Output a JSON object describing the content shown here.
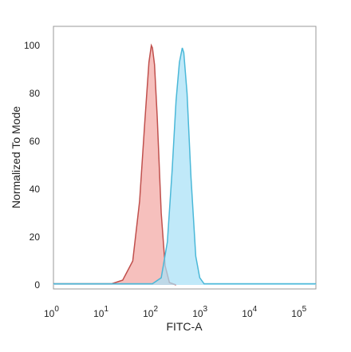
{
  "chart_data": {
    "type": "area",
    "xlabel": "FITC-A",
    "ylabel": "Normalized To Mode",
    "x_scale": "log",
    "xlim": [
      1,
      200000
    ],
    "ylim": [
      0,
      100
    ],
    "x_ticks": [
      {
        "base": "10",
        "exp": "0",
        "value": 1
      },
      {
        "base": "10",
        "exp": "1",
        "value": 10
      },
      {
        "base": "10",
        "exp": "2",
        "value": 100
      },
      {
        "base": "10",
        "exp": "3",
        "value": 1000
      },
      {
        "base": "10",
        "exp": "4",
        "value": 10000
      },
      {
        "base": "10",
        "exp": "5",
        "value": 100000
      }
    ],
    "y_ticks": [
      "0",
      "20",
      "40",
      "60",
      "80",
      "100"
    ],
    "grid": false,
    "series": [
      {
        "fill": "#f3a7a4",
        "stroke": "#c0504d",
        "x": [
          1,
          15,
          25,
          40,
          55,
          70,
          85,
          95,
          100,
          110,
          125,
          150,
          180,
          220,
          300
        ],
        "y": [
          0.5,
          0.5,
          2,
          10,
          35,
          68,
          93,
          100,
          99,
          92,
          70,
          30,
          8,
          1,
          0
        ]
      },
      {
        "fill": "#a8e0f6",
        "stroke": "#4ab8d8",
        "x": [
          1,
          100,
          150,
          200,
          250,
          300,
          350,
          400,
          430,
          500,
          600,
          750,
          900,
          1100,
          200000
        ],
        "y": [
          0.5,
          0.5,
          3,
          18,
          48,
          77,
          93,
          99,
          97,
          80,
          45,
          12,
          3,
          0.5,
          0.5
        ]
      }
    ]
  }
}
